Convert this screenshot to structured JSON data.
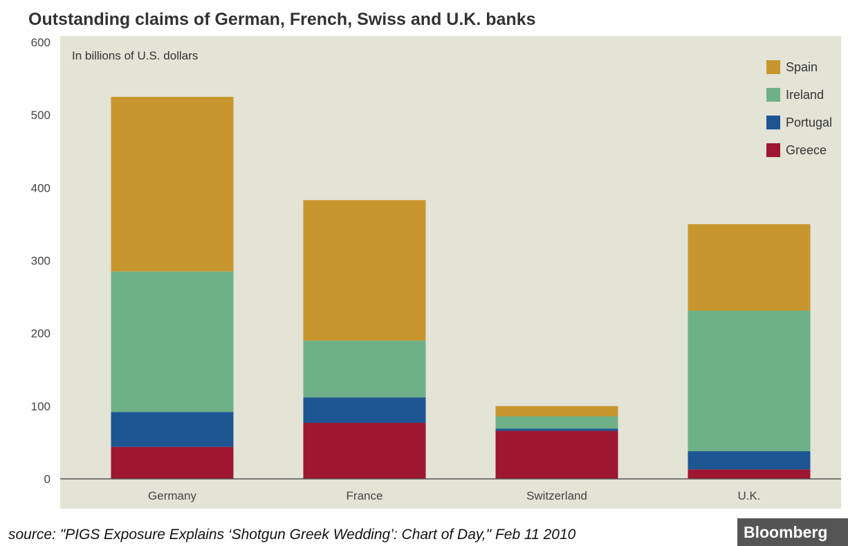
{
  "chart_data": {
    "type": "bar",
    "stacked": true,
    "title": "Outstanding claims of German, French, Swiss and U.K. banks",
    "subtitle": "In billions of U.S. dollars",
    "categories": [
      "Germany",
      "France",
      "Switzerland",
      "U.K."
    ],
    "series": [
      {
        "name": "Greece",
        "color": "#9e1631",
        "values": [
          44,
          77,
          66,
          13
        ]
      },
      {
        "name": "Portugal",
        "color": "#1d5593",
        "values": [
          48,
          35,
          3,
          25
        ]
      },
      {
        "name": "Ireland",
        "color": "#6eb188",
        "values": [
          193,
          78,
          17,
          193
        ]
      },
      {
        "name": "Spain",
        "color": "#c8962f",
        "values": [
          240,
          193,
          14,
          119
        ]
      }
    ],
    "legend_order": [
      "Spain",
      "Ireland",
      "Portugal",
      "Greece"
    ],
    "ylim": [
      0,
      600
    ],
    "yticks": [
      0,
      100,
      200,
      300,
      400,
      500,
      600
    ],
    "xlabel": "",
    "ylabel": "",
    "grid": false,
    "legend_position": "top-right",
    "plot_background": "#e3e3d6"
  },
  "source": "source: \"PIGS Exposure Explains ‘Shotgun Greek Wedding’: Chart of Day,\" Feb 11 2010",
  "brand": "Bloomberg"
}
